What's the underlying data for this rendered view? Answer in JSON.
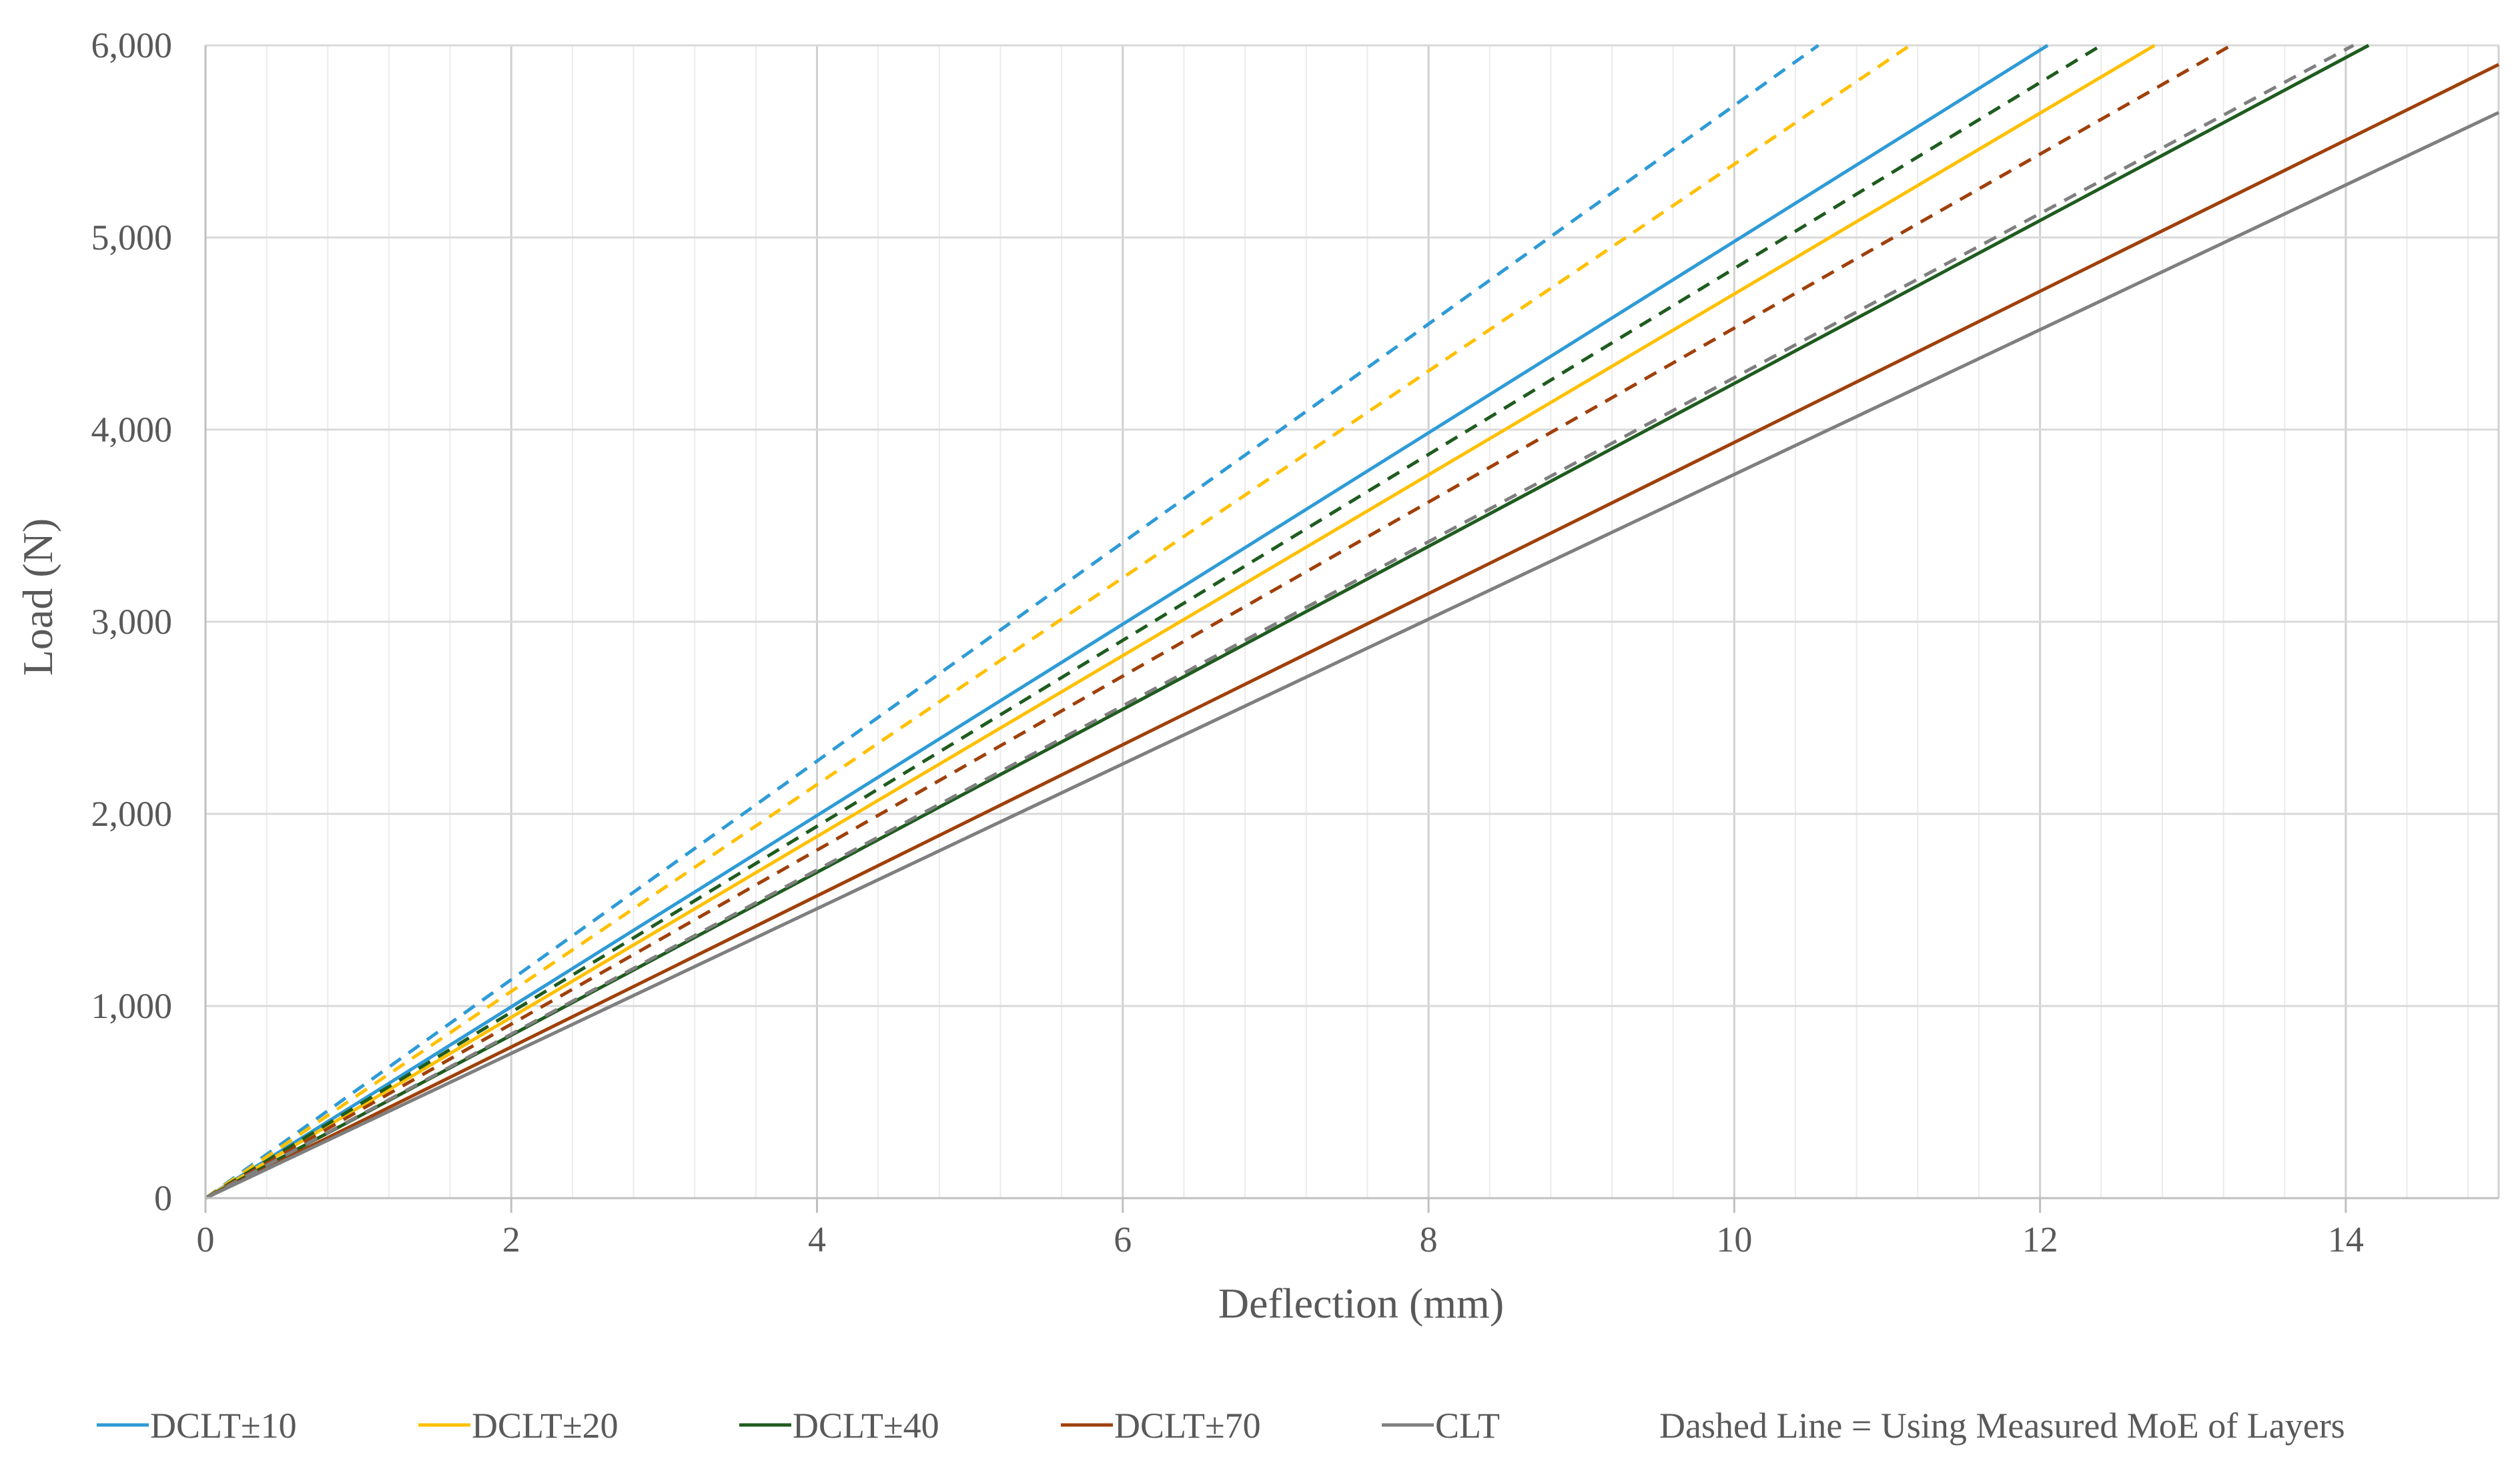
{
  "chart_data": {
    "type": "line",
    "title": "",
    "xlabel": "Deflection (mm)",
    "ylabel": "Load (N)",
    "xlim": [
      0,
      15
    ],
    "ylim": [
      0,
      6000
    ],
    "x_major_ticks": [
      0,
      2,
      4,
      6,
      8,
      10,
      12,
      14
    ],
    "x_minor_step": 0.4,
    "y_ticks": [
      0,
      1000,
      2000,
      3000,
      4000,
      5000,
      6000
    ],
    "x_tick_labels": [
      "0",
      "2",
      "4",
      "6",
      "8",
      "10",
      "12",
      "14"
    ],
    "y_tick_labels": [
      "0",
      "1,000",
      "2,000",
      "3,000",
      "4,000",
      "5,000",
      "6,000"
    ],
    "grid": true,
    "legend_position": "bottom",
    "series": [
      {
        "name": "DCLT±10",
        "style": "solid",
        "color": "#2E9BD6",
        "x": [
          0,
          12.05
        ],
        "y": [
          0,
          6000
        ]
      },
      {
        "name": "DCLT±20",
        "style": "solid",
        "color": "#FFC000",
        "x": [
          0,
          12.75
        ],
        "y": [
          0,
          6000
        ]
      },
      {
        "name": "DCLT±40",
        "style": "solid",
        "color": "#1F5C1F",
        "x": [
          0,
          14.15
        ],
        "y": [
          0,
          6000
        ]
      },
      {
        "name": "DCLT±70",
        "style": "solid",
        "color": "#A0400A",
        "x": [
          0,
          15
        ],
        "y": [
          0,
          5900
        ]
      },
      {
        "name": "CLT",
        "style": "solid",
        "color": "#7F7F7F",
        "x": [
          0,
          15
        ],
        "y": [
          0,
          5650
        ]
      },
      {
        "name": "DCLT±10 (measured MoE)",
        "style": "dashed",
        "color": "#2E9BD6",
        "x": [
          0,
          10.55
        ],
        "y": [
          0,
          6000
        ]
      },
      {
        "name": "DCLT±20 (measured MoE)",
        "style": "dashed",
        "color": "#FFC000",
        "x": [
          0,
          11.15
        ],
        "y": [
          0,
          6000
        ]
      },
      {
        "name": "DCLT±40 (measured MoE)",
        "style": "dashed",
        "color": "#1F5C1F",
        "x": [
          0,
          12.4
        ],
        "y": [
          0,
          6000
        ]
      },
      {
        "name": "DCLT±70 (measured MoE)",
        "style": "dashed",
        "color": "#A0400A",
        "x": [
          0,
          13.25
        ],
        "y": [
          0,
          6000
        ]
      },
      {
        "name": "CLT (measured MoE)",
        "style": "dashed",
        "color": "#7F7F7F",
        "x": [
          0,
          14.05
        ],
        "y": [
          0,
          6000
        ]
      }
    ],
    "legend": [
      {
        "label": "DCLT±10",
        "color": "#2E9BD6"
      },
      {
        "label": "DCLT±20",
        "color": "#FFC000"
      },
      {
        "label": "DCLT±40",
        "color": "#1F5C1F"
      },
      {
        "label": "DCLT±70",
        "color": "#A0400A"
      },
      {
        "label": "CLT",
        "color": "#7F7F7F"
      }
    ],
    "legend_note": "Dashed Line = Using Measured MoE of Layers"
  }
}
